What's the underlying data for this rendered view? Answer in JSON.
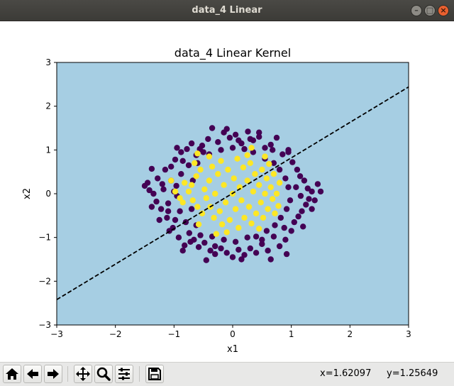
{
  "window": {
    "title": "data_4 Linear",
    "minimize_glyph": "–",
    "maximize_glyph": "□",
    "close_glyph": "×"
  },
  "toolbar": {
    "buttons": [
      "home-icon",
      "back-icon",
      "forward-icon",
      "pan-icon",
      "zoom-icon",
      "configure-subplots-icon",
      "save-icon"
    ],
    "coord_x": "x=1.62097",
    "coord_y": "y=1.25649"
  },
  "colors": {
    "background_region": "#a6cee3",
    "class_outer": "#440154",
    "class_inner": "#fde725",
    "boundary": "#000000"
  },
  "chart_data": {
    "type": "scatter",
    "title": "data_4 Linear Kernel",
    "xlabel": "x1",
    "ylabel": "x2",
    "xlim": [
      -3,
      3
    ],
    "ylim": [
      -3,
      3
    ],
    "xticks": [
      "−3",
      "−2",
      "−1",
      "0",
      "1",
      "2",
      "3"
    ],
    "yticks": [
      "−3",
      "−2",
      "−1",
      "0",
      "1",
      "2",
      "3"
    ],
    "grid": false,
    "legend": "none",
    "decision_boundary": {
      "style": "dashed",
      "points": [
        [
          -3,
          -2.42
        ],
        [
          3,
          2.44
        ]
      ]
    },
    "series": [
      {
        "color": "#440154",
        "points": [
          [
            -1.38,
            0.57
          ],
          [
            -1.45,
            0.25
          ],
          [
            -1.5,
            0.18
          ],
          [
            -1.42,
            0.08
          ],
          [
            -1.3,
            -0.18
          ],
          [
            -1.28,
            0.35
          ],
          [
            -1.22,
            -0.35
          ],
          [
            -1.15,
            0.55
          ],
          [
            -1.12,
            -0.55
          ],
          [
            -1.05,
            0.62
          ],
          [
            -1.02,
            -0.78
          ],
          [
            -0.98,
            0.78
          ],
          [
            -0.95,
            -0.05
          ],
          [
            -0.92,
            -1.0
          ],
          [
            -0.88,
            0.95
          ],
          [
            -0.82,
            -1.18
          ],
          [
            -0.78,
            1.02
          ],
          [
            -0.74,
            -0.9
          ],
          [
            -0.7,
            1.15
          ],
          [
            -0.66,
            -1.05
          ],
          [
            -0.62,
            0.88
          ],
          [
            -0.58,
            -1.22
          ],
          [
            -0.52,
            1.1
          ],
          [
            -0.48,
            -1.12
          ],
          [
            -0.42,
            1.25
          ],
          [
            -0.38,
            -1.3
          ],
          [
            -0.35,
            1.5
          ],
          [
            -0.3,
            -1.38
          ],
          [
            -0.25,
            1.18
          ],
          [
            -0.2,
            -1.25
          ],
          [
            -0.15,
            1.4
          ],
          [
            -0.1,
            -1.35
          ],
          [
            -0.05,
            1.28
          ],
          [
            0.0,
            -1.45
          ],
          [
            0.05,
            1.35
          ],
          [
            0.1,
            -1.28
          ],
          [
            0.15,
            1.15
          ],
          [
            0.2,
            -1.4
          ],
          [
            0.26,
            1.42
          ],
          [
            0.3,
            -1.25
          ],
          [
            0.35,
            1.22
          ],
          [
            0.4,
            -1.35
          ],
          [
            0.45,
            1.3
          ],
          [
            0.5,
            -1.15
          ],
          [
            0.55,
            1.05
          ],
          [
            0.6,
            -1.3
          ],
          [
            0.65,
            1.12
          ],
          [
            0.7,
            -0.98
          ],
          [
            0.75,
            1.28
          ],
          [
            0.8,
            -1.2
          ],
          [
            0.85,
            0.9
          ],
          [
            0.9,
            -1.05
          ],
          [
            0.95,
            0.95
          ],
          [
            1.0,
            -0.85
          ],
          [
            1.02,
            0.72
          ],
          [
            1.05,
            -0.65
          ],
          [
            1.1,
            0.55
          ],
          [
            1.12,
            -0.52
          ],
          [
            1.15,
            0.4
          ],
          [
            1.18,
            -0.4
          ],
          [
            1.22,
            0.3
          ],
          [
            1.25,
            -0.25
          ],
          [
            1.28,
            0.12
          ],
          [
            1.3,
            -0.12
          ],
          [
            1.35,
            0.05
          ],
          [
            1.4,
            -0.15
          ],
          [
            1.5,
            0.05
          ],
          [
            1.45,
            0.22
          ],
          [
            1.35,
            -0.35
          ],
          [
            1.2,
            -0.75
          ],
          [
            0.92,
            -1.38
          ],
          [
            0.65,
            -1.5
          ],
          [
            -0.45,
            -1.52
          ],
          [
            -0.85,
            -1.3
          ],
          [
            -1.25,
            -0.6
          ],
          [
            -1.38,
            -0.3
          ],
          [
            -1.35,
            0.0
          ],
          [
            -1.2,
            0.22
          ],
          [
            -1.1,
            -0.22
          ],
          [
            -1.05,
            0.3
          ],
          [
            -0.9,
            -0.4
          ],
          [
            -0.88,
            0.45
          ],
          [
            -0.8,
            -0.65
          ],
          [
            -0.75,
            0.65
          ],
          [
            -0.7,
            -0.35
          ],
          [
            -0.68,
            0.3
          ],
          [
            -0.6,
            0.7
          ],
          [
            -0.62,
            -0.72
          ],
          [
            -0.55,
            -0.95
          ],
          [
            -0.5,
            0.95
          ],
          [
            -0.4,
            0.9
          ],
          [
            -0.35,
            -0.98
          ],
          [
            -0.2,
            1.0
          ],
          [
            -0.15,
            -1.05
          ],
          [
            0.0,
            1.05
          ],
          [
            0.05,
            -1.1
          ],
          [
            0.2,
            1.02
          ],
          [
            0.25,
            -1.0
          ],
          [
            0.35,
            0.95
          ],
          [
            0.4,
            -0.98
          ],
          [
            0.55,
            0.8
          ],
          [
            0.58,
            -0.85
          ],
          [
            0.7,
            0.7
          ],
          [
            0.72,
            -0.72
          ],
          [
            0.8,
            0.55
          ],
          [
            0.82,
            -0.55
          ],
          [
            0.9,
            0.35
          ],
          [
            0.92,
            -0.35
          ],
          [
            0.95,
            0.15
          ],
          [
            0.98,
            -0.15
          ],
          [
            -1.0,
            0.05
          ],
          [
            -0.96,
            0.18
          ],
          [
            -1.18,
            0.1
          ],
          [
            -1.1,
            -0.4
          ],
          [
            -0.98,
            -0.6
          ],
          [
            -0.85,
            0.75
          ],
          [
            0.3,
            1.25
          ],
          [
            0.1,
            1.22
          ],
          [
            -0.3,
            -1.2
          ],
          [
            0.5,
            -1.05
          ],
          [
            -0.56,
            1.02
          ],
          [
            0.68,
            1.0
          ],
          [
            0.88,
            -0.78
          ],
          [
            -0.72,
            -1.1
          ],
          [
            1.08,
            0.15
          ],
          [
            1.16,
            -0.05
          ],
          [
            -1.08,
            -0.85
          ],
          [
            0.45,
            1.4
          ],
          [
            -0.1,
            1.48
          ],
          [
            0.15,
            -1.5
          ],
          [
            0.95,
            1.0
          ],
          [
            -0.95,
            1.05
          ]
        ]
      },
      {
        "color": "#fde725",
        "points": [
          [
            -0.75,
            0.05
          ],
          [
            -0.7,
            0.2
          ],
          [
            -0.68,
            -0.15
          ],
          [
            -0.62,
            0.4
          ],
          [
            -0.6,
            -0.3
          ],
          [
            -0.55,
            0.55
          ],
          [
            -0.52,
            -0.45
          ],
          [
            -0.48,
            0.1
          ],
          [
            -0.45,
            -0.1
          ],
          [
            -0.4,
            0.3
          ],
          [
            -0.38,
            -0.3
          ],
          [
            -0.35,
            0.62
          ],
          [
            -0.32,
            -0.55
          ],
          [
            -0.3,
            0.0
          ],
          [
            -0.25,
            0.45
          ],
          [
            -0.22,
            -0.4
          ],
          [
            -0.2,
            0.75
          ],
          [
            -0.18,
            -0.7
          ],
          [
            -0.15,
            0.2
          ],
          [
            -0.12,
            -0.2
          ],
          [
            -0.08,
            0.55
          ],
          [
            -0.05,
            -0.6
          ],
          [
            0.0,
            0.0
          ],
          [
            0.02,
            0.35
          ],
          [
            0.05,
            -0.35
          ],
          [
            0.08,
            0.8
          ],
          [
            0.1,
            -0.78
          ],
          [
            0.12,
            0.15
          ],
          [
            0.15,
            -0.15
          ],
          [
            0.18,
            0.6
          ],
          [
            0.2,
            -0.55
          ],
          [
            0.25,
            0.3
          ],
          [
            0.28,
            -0.3
          ],
          [
            0.3,
            0.7
          ],
          [
            0.32,
            -0.68
          ],
          [
            0.35,
            0.05
          ],
          [
            0.38,
            0.45
          ],
          [
            0.4,
            -0.45
          ],
          [
            0.45,
            0.2
          ],
          [
            0.48,
            -0.2
          ],
          [
            0.5,
            0.55
          ],
          [
            0.52,
            -0.55
          ],
          [
            0.55,
            0.0
          ],
          [
            0.58,
            0.35
          ],
          [
            0.6,
            -0.35
          ],
          [
            0.65,
            0.15
          ],
          [
            0.68,
            -0.12
          ],
          [
            0.7,
            0.45
          ],
          [
            0.72,
            -0.45
          ],
          [
            0.75,
            0.0
          ],
          [
            -0.65,
            0.7
          ],
          [
            0.62,
            0.68
          ],
          [
            -0.58,
            -0.7
          ],
          [
            0.45,
            -0.8
          ],
          [
            -0.4,
            0.85
          ],
          [
            0.25,
            0.88
          ],
          [
            -0.1,
            -0.88
          ],
          [
            -0.82,
            0.25
          ],
          [
            -0.85,
            -0.2
          ],
          [
            0.8,
            0.25
          ],
          [
            0.78,
            -0.28
          ],
          [
            -1.05,
            0.3
          ],
          [
            -0.98,
            0.05
          ],
          [
            -0.9,
            -0.1
          ],
          [
            -0.28,
            -0.92
          ],
          [
            0.55,
            0.85
          ],
          [
            -0.6,
            0.92
          ],
          [
            0.32,
            1.05
          ]
        ]
      }
    ]
  }
}
